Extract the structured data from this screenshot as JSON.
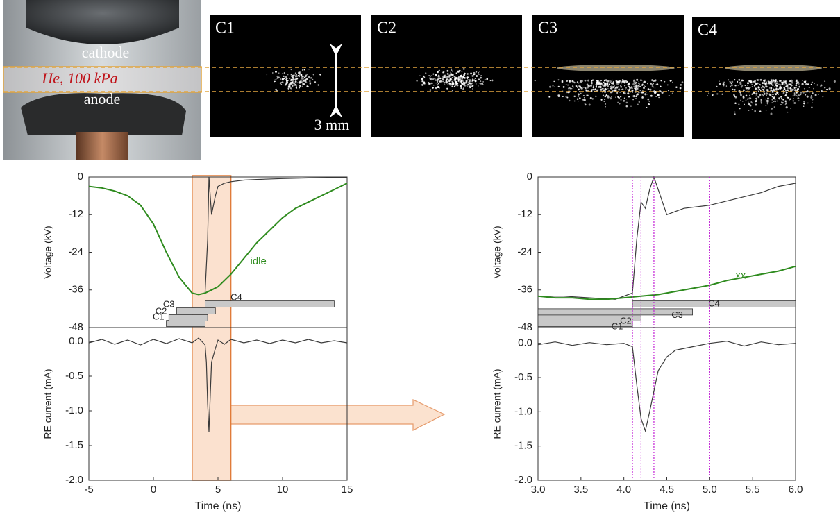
{
  "photo": {
    "cathode_label": "cathode",
    "gas_label": "He, 100 kPa",
    "anode_label": "anode"
  },
  "frames": [
    "C1",
    "C2",
    "C3",
    "C4"
  ],
  "scale_label": "3 mm",
  "chart_data": [
    {
      "type": "line",
      "ylabel": "Voltage (kV)",
      "xlim": [
        -5,
        15
      ],
      "ylim": [
        -48,
        0
      ],
      "yticks": [
        0,
        -12,
        -24,
        -36,
        -48
      ],
      "series": [
        {
          "color": "#3a3a3a",
          "x": [
            -5,
            -4,
            -3,
            -2,
            -1,
            0,
            1,
            2,
            3,
            3.5,
            4,
            4.2,
            4.3,
            4.5,
            4.8,
            5,
            5.5,
            6,
            7,
            8,
            10,
            12,
            15
          ],
          "values": [
            -3,
            -3.5,
            -4.5,
            -6,
            -9,
            -15,
            -24,
            -32,
            -37,
            -37.5,
            -37,
            -20,
            0,
            -12,
            -6,
            -3,
            -2,
            -1.5,
            -1,
            -0.8,
            -0.5,
            -0.3,
            -0.2
          ]
        },
        {
          "name": "idle",
          "color": "#2e8b1e",
          "x": [
            -5,
            -4,
            -3,
            -2,
            -1,
            0,
            1,
            2,
            3,
            3.5,
            4,
            4.5,
            5,
            6,
            7,
            8,
            9,
            10,
            11,
            12,
            13,
            14,
            15
          ],
          "values": [
            -3,
            -3.5,
            -4.5,
            -6,
            -9,
            -15,
            -24,
            -32,
            -37,
            -37.5,
            -37,
            -36,
            -35,
            -31,
            -26,
            -21,
            -17,
            -13,
            -10,
            -8,
            -6,
            -4,
            -2
          ]
        }
      ],
      "gates": [
        {
          "name": "C1",
          "start": 1,
          "end": 4
        },
        {
          "name": "C2",
          "start": 1.2,
          "end": 4.2
        },
        {
          "name": "C3",
          "start": 1.8,
          "end": 4.8
        },
        {
          "name": "C4",
          "start": 4,
          "end": 14
        }
      ],
      "highlight": [
        3,
        6
      ]
    },
    {
      "type": "line",
      "ylabel": "RE current (mA)",
      "xlabel": "Time (ns)",
      "xlim": [
        -5,
        15
      ],
      "ylim": [
        -2,
        0.2
      ],
      "xticks": [
        -5,
        0,
        5,
        10,
        15
      ],
      "yticks": [
        {
          "value": 0,
          "label": "0.0"
        },
        -0.5,
        {
          "value": -1,
          "label": "-1.0"
        },
        -1.5,
        {
          "value": -2,
          "label": "-2.0"
        }
      ],
      "series": [
        {
          "color": "#3a3a3a",
          "x": [
            -5,
            -4,
            -3,
            -2,
            -1,
            0,
            1,
            2,
            3,
            3.5,
            4,
            4.1,
            4.2,
            4.3,
            4.4,
            4.5,
            4.8,
            5,
            5.5,
            6,
            7,
            8,
            9,
            10,
            11,
            12,
            13,
            14,
            15
          ],
          "values": [
            -0.02,
            0.03,
            -0.04,
            0.02,
            -0.05,
            0.03,
            -0.03,
            0.04,
            -0.02,
            0.05,
            -0.05,
            -0.3,
            -0.9,
            -1.3,
            -0.8,
            -0.3,
            -0.1,
            0.02,
            -0.04,
            0.03,
            -0.02,
            0.02,
            -0.03,
            0.02,
            -0.02,
            0.03,
            -0.02,
            0.01,
            -0.02
          ]
        }
      ]
    },
    {
      "type": "line",
      "ylabel": "Voltage (kV)",
      "xlim": [
        3,
        6
      ],
      "ylim": [
        -48,
        0
      ],
      "yticks": [
        0,
        -12,
        -24,
        -36,
        -48
      ],
      "series": [
        {
          "color": "#3a3a3a",
          "x": [
            3,
            3.3,
            3.6,
            3.9,
            4.1,
            4.15,
            4.2,
            4.25,
            4.3,
            4.35,
            4.4,
            4.5,
            4.7,
            5.0,
            5.3,
            5.6,
            5.8,
            6.0
          ],
          "values": [
            -38,
            -38,
            -38.5,
            -39,
            -37,
            -20,
            -8,
            -10,
            -4,
            0,
            -4,
            -12,
            -10,
            -9,
            -7,
            -5,
            -3,
            -2
          ]
        },
        {
          "name": "xx",
          "color": "#2e8b1e",
          "x": [
            3,
            3.2,
            3.4,
            3.6,
            3.8,
            4.0,
            4.2,
            4.4,
            4.6,
            4.8,
            5.0,
            5.2,
            5.4,
            5.6,
            5.8,
            6.0
          ],
          "values": [
            -38,
            -38.5,
            -38.5,
            -39,
            -39,
            -38.5,
            -38,
            -37.5,
            -36.5,
            -35.5,
            -34.5,
            -33,
            -32,
            -31,
            -30,
            -28.5
          ]
        }
      ],
      "gates": [
        {
          "name": "C1",
          "start": 3,
          "end": 4.1
        },
        {
          "name": "C2",
          "start": 3,
          "end": 4.2
        },
        {
          "name": "C3",
          "start": 3,
          "end": 4.8
        },
        {
          "name": "C4",
          "start": 4.1,
          "end": 6
        }
      ],
      "markers": [
        4.1,
        4.2,
        4.35,
        5.0
      ]
    },
    {
      "type": "line",
      "ylabel": "RE current (mA)",
      "xlabel": "Time (ns)",
      "xlim": [
        3,
        6
      ],
      "ylim": [
        -2,
        0.23
      ],
      "xticks": [
        {
          "value": 3,
          "label": "3.0"
        },
        3.5,
        {
          "value": 4,
          "label": "4.0"
        },
        4.5,
        {
          "value": 5,
          "label": "5.0"
        },
        5.5,
        {
          "value": 6,
          "label": "6.0"
        }
      ],
      "yticks": [
        {
          "value": 0,
          "label": "0.0"
        },
        -0.5,
        {
          "value": -1,
          "label": "-1.0"
        },
        -1.5,
        {
          "value": -2,
          "label": "-2.0"
        }
      ],
      "series": [
        {
          "color": "#3a3a3a",
          "x": [
            3,
            3.2,
            3.4,
            3.6,
            3.8,
            4.0,
            4.1,
            4.15,
            4.2,
            4.25,
            4.3,
            4.35,
            4.4,
            4.5,
            4.6,
            4.8,
            5.0,
            5.2,
            5.4,
            5.6,
            5.8,
            6.0
          ],
          "values": [
            -0.02,
            0.02,
            -0.03,
            0.01,
            -0.02,
            0.0,
            -0.05,
            -0.6,
            -1.1,
            -1.28,
            -1.0,
            -0.7,
            -0.4,
            -0.2,
            -0.1,
            -0.05,
            0.0,
            0.03,
            -0.04,
            0.02,
            -0.02,
            0.0
          ]
        }
      ]
    }
  ]
}
